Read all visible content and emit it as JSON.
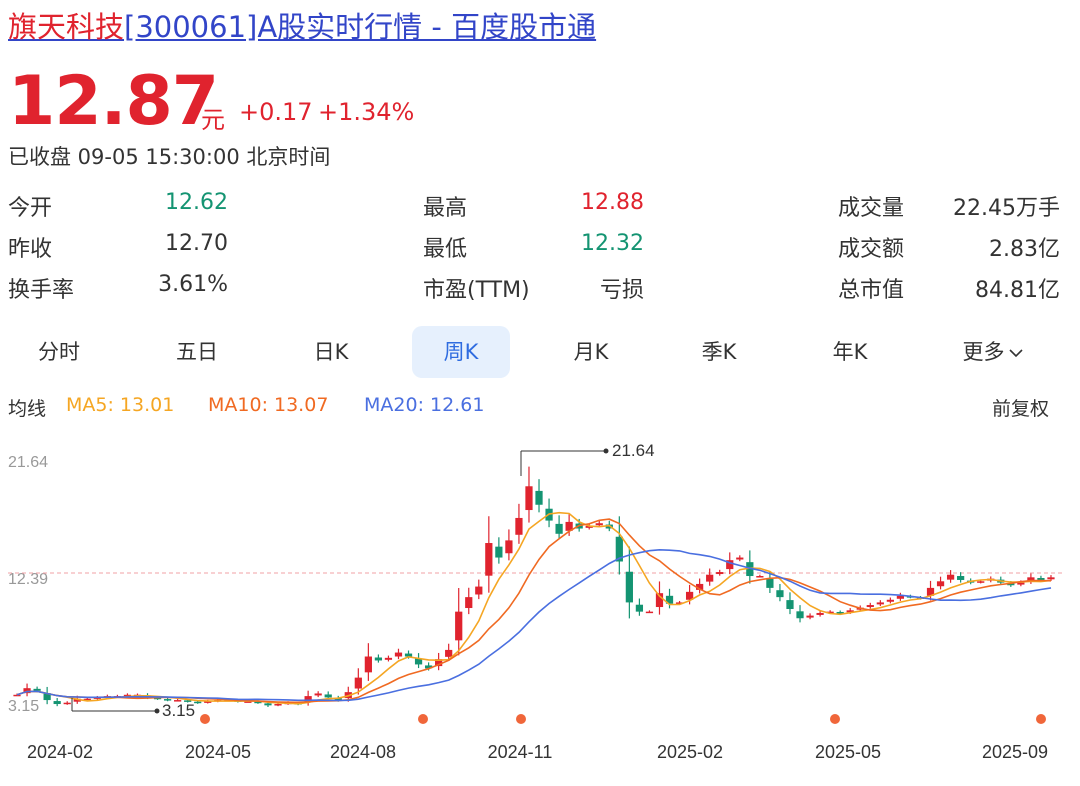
{
  "title": {
    "name": "旗天科技",
    "rest": "[300061]A股实时行情 - 百度股市通"
  },
  "quote": {
    "price": "12.87",
    "unit": "元",
    "change": "+0.17",
    "change_pct": "+1.34%",
    "status": "已收盘 09-05 15:30:00 北京时间"
  },
  "stats": [
    {
      "label": "今开",
      "value": "12.62",
      "color": "#149472"
    },
    {
      "label": "最高",
      "value": "12.88",
      "color": "#e0232e"
    },
    {
      "label": "成交量",
      "value": "22.45万手",
      "color": "#333333"
    },
    {
      "label": "昨收",
      "value": "12.70",
      "color": "#333333"
    },
    {
      "label": "最低",
      "value": "12.32",
      "color": "#149472"
    },
    {
      "label": "成交额",
      "value": "2.83亿",
      "color": "#333333"
    },
    {
      "label": "换手率",
      "value": "3.61%",
      "color": "#333333"
    },
    {
      "label": "市盈(TTM)",
      "value": "亏损",
      "color": "#333333"
    },
    {
      "label": "总市值",
      "value": "84.81亿",
      "color": "#333333"
    }
  ],
  "tabs": [
    {
      "label": "分时"
    },
    {
      "label": "五日"
    },
    {
      "label": "日K"
    },
    {
      "label": "周K",
      "active": true
    },
    {
      "label": "月K"
    },
    {
      "label": "季K"
    },
    {
      "label": "年K"
    },
    {
      "label": "更多"
    }
  ],
  "ma": {
    "label": "均线",
    "ma5": "MA5: 13.01",
    "ma10": "MA10: 13.07",
    "ma20": "MA20: 12.61",
    "adjust": "前复权"
  },
  "colors": {
    "up": "#e0232e",
    "down": "#149472",
    "ma5": "#f5a623",
    "ma10": "#f06a22",
    "ma20": "#4a6fe0"
  },
  "chart_data": {
    "type": "candlestick",
    "y_ticks": [
      "21.64",
      "12.39",
      "3.15"
    ],
    "y_range": [
      3.15,
      21.64
    ],
    "reference_line": 12.39,
    "high_marker": "21.64",
    "low_marker": "3.15",
    "x_ticks": [
      "2024-02",
      "2024-05",
      "2024-08",
      "2024-11",
      "2025-02",
      "2025-05",
      "2025-09"
    ],
    "closes": [
      4.0,
      4.5,
      4.3,
      3.6,
      3.3,
      3.4,
      3.7,
      3.7,
      3.8,
      3.9,
      3.9,
      4.0,
      4.0,
      3.8,
      3.7,
      3.6,
      3.6,
      3.5,
      3.4,
      3.5,
      3.6,
      3.6,
      3.5,
      3.5,
      3.4,
      3.2,
      3.3,
      3.4,
      3.3,
      3.9,
      4.1,
      3.8,
      3.6,
      4.2,
      5.3,
      6.9,
      6.6,
      6.8,
      7.2,
      6.9,
      6.3,
      6.0,
      6.7,
      7.4,
      10.3,
      11.4,
      12.2,
      15.5,
      14.4,
      15.7,
      17.4,
      19.8,
      18.4,
      17.2,
      16.2,
      17.1,
      16.6,
      16.8,
      17.0,
      16.6,
      14.1,
      11.0,
      10.3,
      10.3,
      11.7,
      10.9,
      11.0,
      11.8,
      12.4,
      13.1,
      13.3,
      14.2,
      14.4,
      13.0,
      13.0,
      12.1,
      11.4,
      10.5,
      9.8,
      10.0,
      10.2,
      10.3,
      10.2,
      10.4,
      10.6,
      10.8,
      11.0,
      11.2,
      11.5,
      11.4,
      11.3,
      12.1,
      12.6,
      13.1,
      12.7,
      12.5,
      12.6,
      12.8,
      12.5,
      12.3,
      12.5,
      12.9,
      12.7,
      12.9
    ]
  }
}
